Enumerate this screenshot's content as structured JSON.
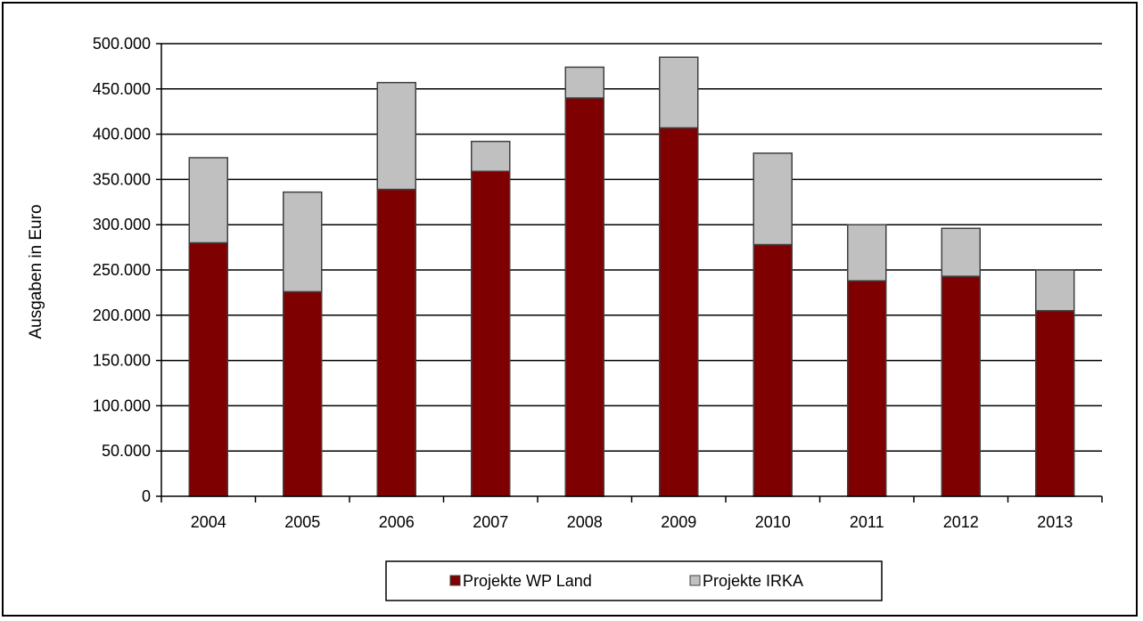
{
  "chart_data": {
    "type": "bar",
    "stacked": true,
    "categories": [
      "2004",
      "2005",
      "2006",
      "2007",
      "2008",
      "2009",
      "2010",
      "2011",
      "2012",
      "2013"
    ],
    "series": [
      {
        "name": "Projekte WP Land",
        "color": "#7f0000",
        "values": [
          280000,
          226000,
          339000,
          359000,
          440000,
          407000,
          278000,
          238000,
          243000,
          205000
        ]
      },
      {
        "name": "Projekte IRKA",
        "color": "#c0c0c0",
        "values": [
          94000,
          110000,
          118000,
          33000,
          34000,
          78000,
          101000,
          62000,
          53000,
          45000
        ]
      }
    ],
    "title": "",
    "xlabel": "",
    "ylabel": "Ausgaben in Euro",
    "ylim": [
      0,
      500000
    ],
    "yticks": [
      0,
      50000,
      100000,
      150000,
      200000,
      250000,
      300000,
      350000,
      400000,
      450000,
      500000
    ],
    "ytick_labels": [
      "0",
      "50.000",
      "100.000",
      "150.000",
      "200.000",
      "250.000",
      "300.000",
      "350.000",
      "400.000",
      "450.000",
      "500.000"
    ],
    "grid": true,
    "legend": "bottom"
  }
}
